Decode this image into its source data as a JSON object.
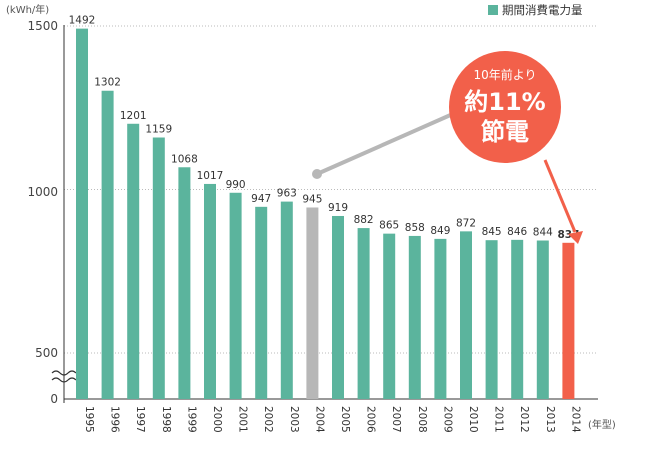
{
  "chart_data": {
    "type": "bar",
    "title": "",
    "y_unit": "(kWh/年)",
    "x_unit": "(年型)",
    "legend": {
      "label": "期間消費電力量",
      "color": "#5bb49d",
      "position": "top-right"
    },
    "categories": [
      "1995",
      "1996",
      "1997",
      "1998",
      "1999",
      "2000",
      "2001",
      "2002",
      "2003",
      "2004",
      "2005",
      "2006",
      "2007",
      "2008",
      "2009",
      "2010",
      "2011",
      "2012",
      "2013",
      "2014"
    ],
    "values": [
      1492,
      1302,
      1201,
      1159,
      1068,
      1017,
      990,
      947,
      963,
      945,
      919,
      882,
      865,
      858,
      849,
      872,
      845,
      846,
      844,
      837
    ],
    "yticks": [
      "0",
      "500",
      "1000",
      "1500"
    ],
    "axis_break": true,
    "grid": true,
    "colors": {
      "default": "#5bb49d",
      "reference": "#b7b7b7",
      "highlight": "#f2604a"
    },
    "reference_year": "2004",
    "highlight_year": "2014",
    "callout": {
      "line1": "10年前より",
      "line2": "約11%",
      "line3": "節電"
    }
  }
}
